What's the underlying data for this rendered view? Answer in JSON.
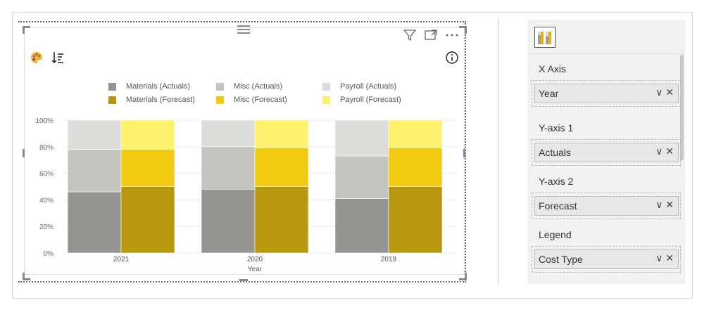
{
  "visual": {
    "header_icons": [
      "filter-icon",
      "focus-mode-icon",
      "more-options-icon"
    ],
    "toolbar_icons": [
      "palette-icon",
      "sort-icon",
      "info-icon"
    ]
  },
  "chart_data": {
    "type": "bar",
    "stacked": "100%",
    "categories": [
      "2021",
      "2020",
      "2019"
    ],
    "xlabel": "Year",
    "ylabel": "",
    "yticks": [
      "0%",
      "20%",
      "40%",
      "60%",
      "80%",
      "100%"
    ],
    "ylim": [
      0,
      100
    ],
    "legend_position": "top",
    "groups": [
      {
        "name": "Actuals",
        "series": [
          {
            "name": "Materials (Actuals)",
            "color": "#959490",
            "values": [
              46,
              48,
              41
            ]
          },
          {
            "name": "Misc (Actuals)",
            "color": "#c4c3be",
            "values": [
              32,
              32,
              32
            ]
          },
          {
            "name": "Payroll (Actuals)",
            "color": "#dcdcd8",
            "values": [
              22,
              20,
              27
            ]
          }
        ]
      },
      {
        "name": "Forecast",
        "series": [
          {
            "name": "Materials (Forecast)",
            "color": "#b7980f",
            "values": [
              50,
              50,
              50
            ]
          },
          {
            "name": "Misc (Forecast)",
            "color": "#f2ca12",
            "values": [
              28,
              29,
              29
            ]
          },
          {
            "name": "Payroll (Forecast)",
            "color": "#fdf16d",
            "values": [
              22,
              21,
              21
            ]
          }
        ]
      }
    ],
    "grid": true
  },
  "legend": [
    {
      "label": "Materials (Actuals)",
      "color": "#959490"
    },
    {
      "label": "Misc (Actuals)",
      "color": "#c4c3be"
    },
    {
      "label": "Payroll (Actuals)",
      "color": "#dcdcd8"
    },
    {
      "label": "Materials (Forecast)",
      "color": "#b7980f"
    },
    {
      "label": "Misc (Forecast)",
      "color": "#f2ca12"
    },
    {
      "label": "Payroll (Forecast)",
      "color": "#fdf16d"
    }
  ],
  "fields_pane": {
    "wells": [
      {
        "title": "X Axis",
        "field": "Year"
      },
      {
        "title": "Y-axis 1",
        "field": "Actuals"
      },
      {
        "title": "Y-axis 2",
        "field": "Forecast"
      },
      {
        "title": "Legend",
        "field": "Cost Type"
      }
    ]
  }
}
